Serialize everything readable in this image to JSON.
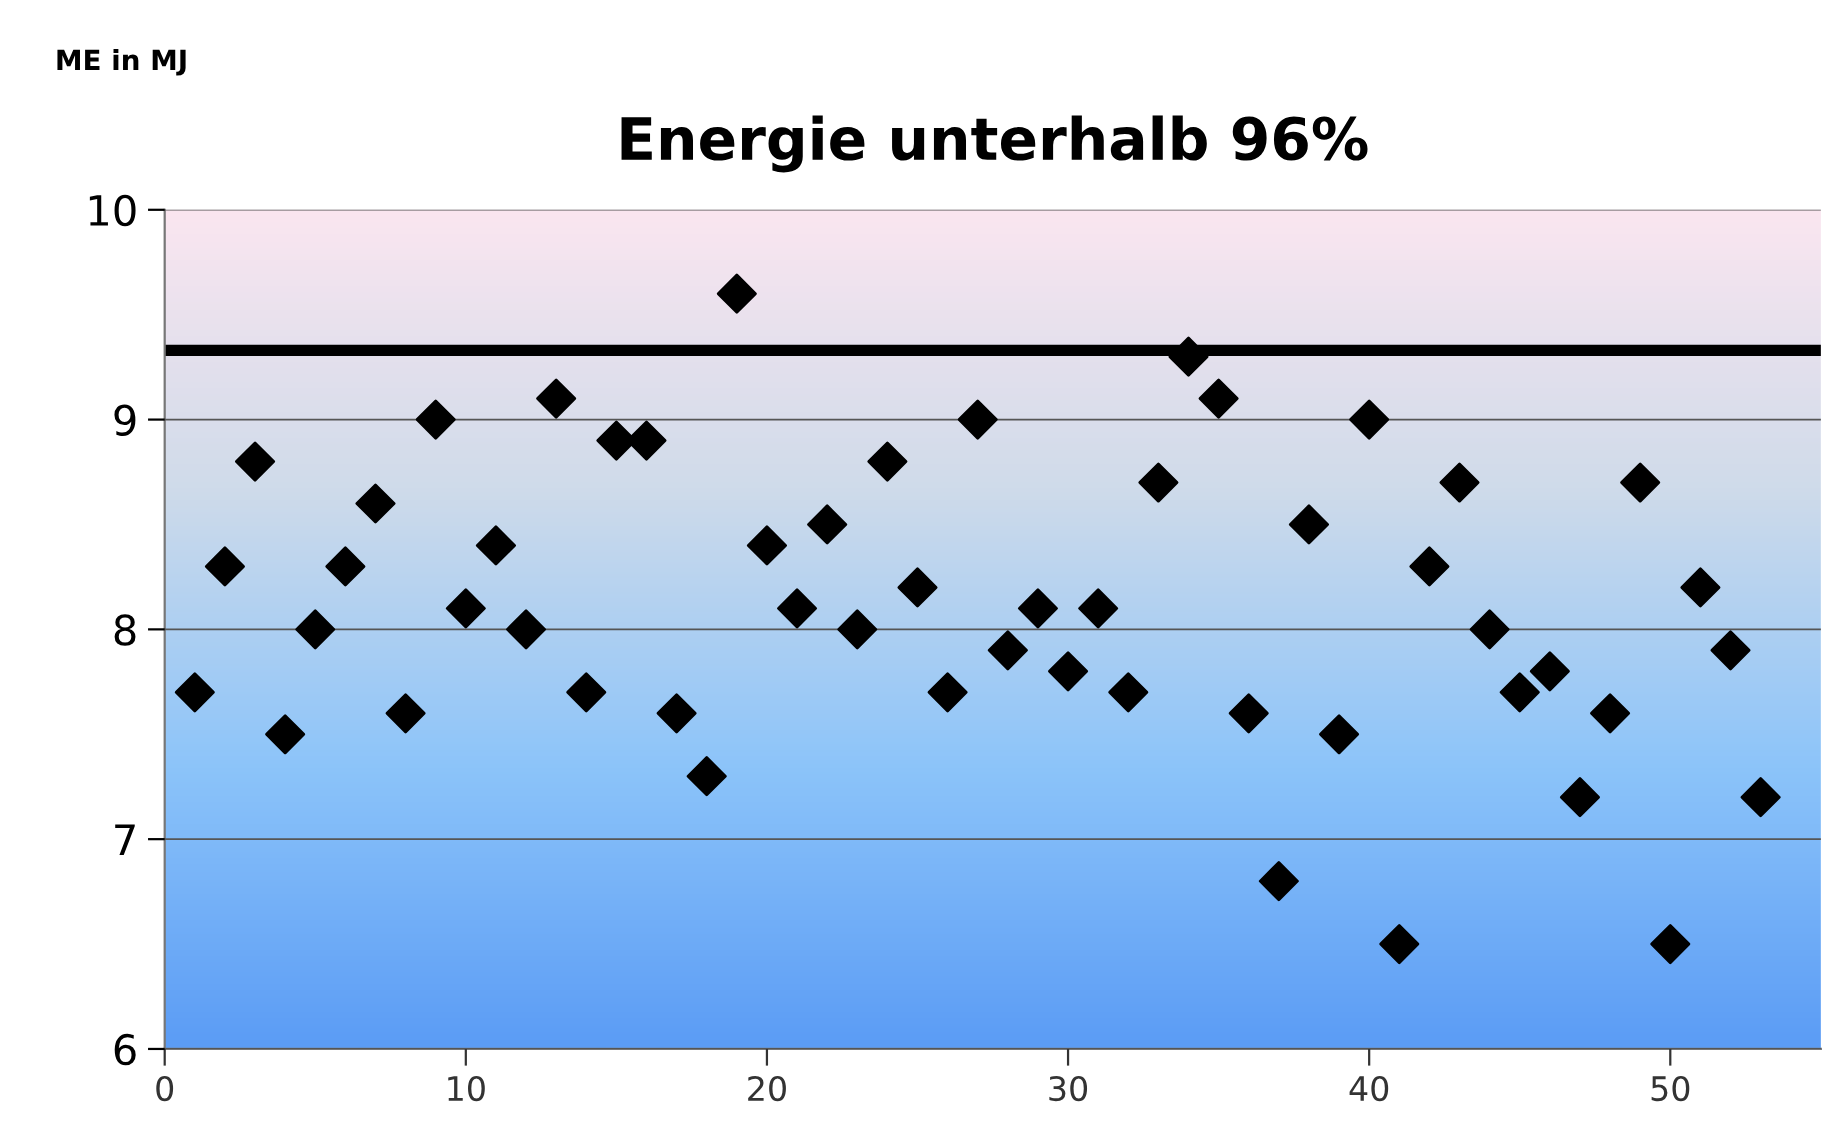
{
  "chart_data": {
    "type": "scatter",
    "title": "Energie unterhalb 96%",
    "ylabel": "ME in MJ",
    "x": [
      1,
      2,
      3,
      4,
      5,
      6,
      7,
      8,
      9,
      10,
      11,
      12,
      13,
      14,
      15,
      16,
      17,
      18,
      19,
      20,
      21,
      22,
      23,
      24,
      25,
      26,
      27,
      28,
      29,
      30,
      31,
      32,
      33,
      34,
      35,
      36,
      37,
      38,
      39,
      40,
      41,
      42,
      43,
      44,
      45,
      46,
      47,
      48,
      49,
      50,
      51,
      52,
      53
    ],
    "series": [
      {
        "color": "#000000",
        "values": [
          7.7,
          8.3,
          8.8,
          7.5,
          8.0,
          8.3,
          8.6,
          7.6,
          9.0,
          8.1,
          8.4,
          8.0,
          9.1,
          7.7,
          8.9,
          8.9,
          7.6,
          7.3,
          9.6,
          8.4,
          8.1,
          8.5,
          8.0,
          8.8,
          8.2,
          7.7,
          9.0,
          7.9,
          8.1,
          7.8,
          8.1,
          7.7,
          8.7,
          9.3,
          9.1,
          7.6,
          6.8,
          8.5,
          7.5,
          9.0,
          6.5,
          8.3,
          8.7,
          8.0,
          7.7,
          7.8,
          7.2,
          7.6,
          8.7,
          6.5,
          8.2,
          7.9,
          7.2
        ]
      }
    ],
    "marker": "diamond",
    "xlim": [
      0,
      55
    ],
    "xticks": [
      0,
      10,
      20,
      30,
      40,
      50
    ],
    "ylim": [
      6,
      10
    ],
    "yticks": [
      6,
      7,
      8,
      9,
      10
    ],
    "grid": "y",
    "ref_lines": [
      {
        "axis": "y",
        "value": 9.33,
        "color": "#000000"
      }
    ]
  }
}
